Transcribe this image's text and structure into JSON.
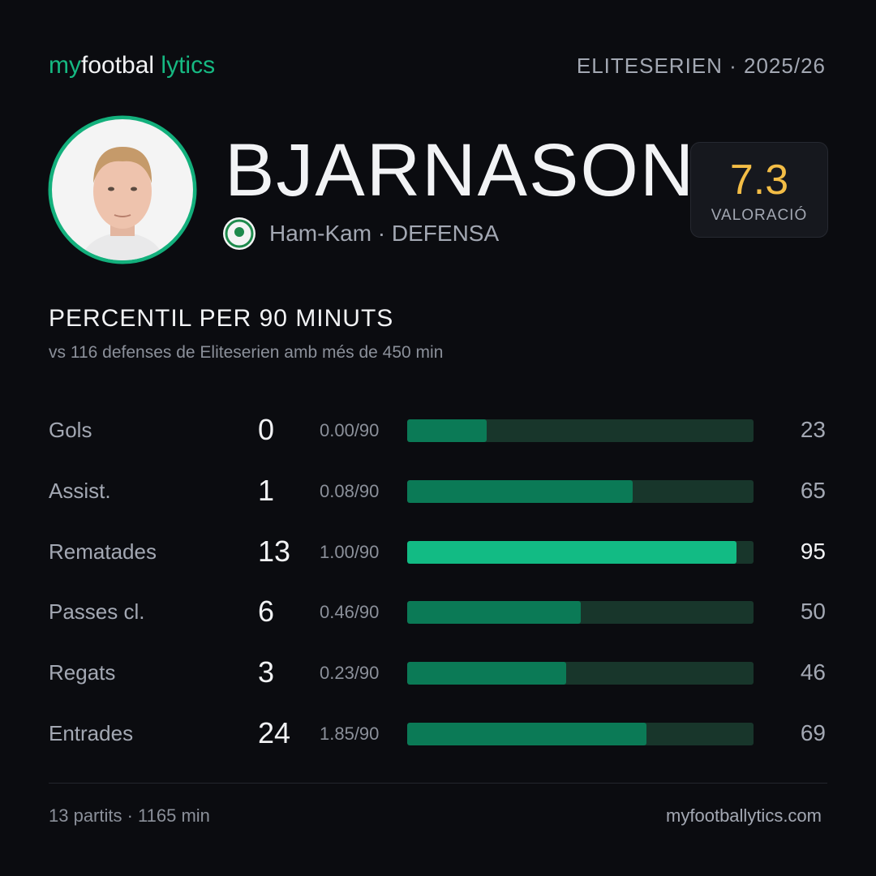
{
  "header": {
    "logo": [
      "my",
      "footbal",
      "lytics"
    ],
    "competition": "ELITESERIEN · 2025/26"
  },
  "player": {
    "name": "BJARNASON",
    "team_position": "Ham-Kam · DEFENSA",
    "rating": 7.3,
    "rating_label": "VALORACIÓ"
  },
  "section": {
    "title": "PERCENTIL PER 90 MINUTS",
    "subtitle": "vs 116 defenses de Eliteserien amb més de 450 min"
  },
  "rows": [
    {
      "label": "Gols",
      "total": 0,
      "per90": "0.00/90",
      "percentile": 23,
      "color": "#0b7a56"
    },
    {
      "label": "Assist.",
      "total": 1,
      "per90": "0.08/90",
      "percentile": 65,
      "color": "#0b7a56"
    },
    {
      "label": "Rematades",
      "total": 13,
      "per90": "1.00/90",
      "percentile": 95,
      "color": "#12bb84"
    },
    {
      "label": "Passes cl.",
      "total": 6,
      "per90": "0.46/90",
      "percentile": 50,
      "color": "#0b7a56"
    },
    {
      "label": "Regats",
      "total": 3,
      "per90": "0.23/90",
      "percentile": 46,
      "color": "#0b7a56"
    },
    {
      "label": "Entrades",
      "total": 24,
      "per90": "1.85/90",
      "percentile": 69,
      "color": "#0b7a56"
    }
  ],
  "footer": {
    "summary": "13 partits · 1165 min",
    "site": "myfootballytics.com"
  }
}
